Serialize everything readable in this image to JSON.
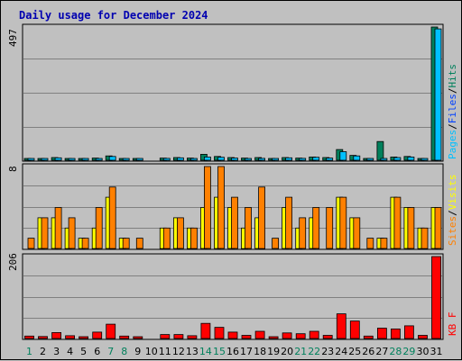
{
  "title": "Daily usage for December 2024",
  "colors": {
    "hits": "#00805c",
    "files": "#0040ff",
    "pages": "#00c0ff",
    "visits": "#ffff00",
    "sites": "#ff8000",
    "kbytes": "#ff0000",
    "weekday_label": "#000000",
    "weekend_label": "#00805c",
    "panel_bg": "#c0c0c0",
    "grid": "#808080"
  },
  "legend": {
    "top": [
      "Pages",
      "/",
      "Files",
      "/",
      "Hits"
    ],
    "middle": [
      "Sites",
      "/",
      "Visits"
    ],
    "bottom": [
      "KB",
      " ",
      "F"
    ]
  },
  "chart_data": {
    "type": "bar",
    "title": "Daily usage for December 2024",
    "categories": [
      "1",
      "2",
      "3",
      "4",
      "5",
      "6",
      "7",
      "8",
      "9",
      "10",
      "11",
      "12",
      "13",
      "14",
      "15",
      "16",
      "17",
      "18",
      "19",
      "20",
      "21",
      "22",
      "23",
      "24",
      "25",
      "26",
      "27",
      "28",
      "29",
      "30",
      "31"
    ],
    "weekend_days": [
      "1",
      "7",
      "8",
      "14",
      "15",
      "21",
      "22",
      "28",
      "29"
    ],
    "panels": [
      {
        "id": "hits_files_pages",
        "ymax_label": "497",
        "ylim": [
          0,
          497
        ],
        "grid": true,
        "legend": "Pages / Files / Hits",
        "series": [
          {
            "name": "Hits",
            "values": [
              6,
              6,
              10,
              6,
              6,
              8,
              16,
              6,
              6,
              0,
              8,
              10,
              8,
              22,
              14,
              10,
              8,
              10,
              6,
              10,
              8,
              12,
              10,
              40,
              18,
              6,
              70,
              12,
              14,
              6,
              497
            ]
          },
          {
            "name": "Files",
            "values": [
              0,
              0,
              0,
              0,
              0,
              0,
              0,
              0,
              0,
              0,
              0,
              0,
              0,
              0,
              0,
              0,
              0,
              0,
              0,
              0,
              0,
              0,
              0,
              0,
              0,
              0,
              0,
              0,
              0,
              0,
              0
            ]
          },
          {
            "name": "Pages",
            "values": [
              5,
              5,
              9,
              5,
              5,
              6,
              14,
              5,
              5,
              0,
              7,
              9,
              6,
              12,
              11,
              8,
              6,
              7,
              5,
              9,
              7,
              11,
              8,
              32,
              16,
              5,
              6,
              10,
              12,
              5,
              490
            ]
          }
        ]
      },
      {
        "id": "visits_sites",
        "ymax_label": "8",
        "ylim": [
          0,
          8
        ],
        "grid": true,
        "legend": "Sites / Visits",
        "series": [
          {
            "name": "Visits",
            "values": [
              0,
              3,
              3,
              2,
              1,
              2,
              5,
              1,
              0,
              0,
              2,
              3,
              2,
              4,
              5,
              4,
              2,
              3,
              0,
              4,
              2,
              3,
              0,
              5,
              3,
              0,
              1,
              5,
              4,
              2,
              4
            ]
          },
          {
            "name": "Sites",
            "values": [
              1,
              3,
              4,
              3,
              1,
              4,
              6,
              1,
              1,
              0,
              2,
              3,
              2,
              8,
              8,
              5,
              4,
              6,
              1,
              5,
              3,
              4,
              4,
              5,
              3,
              1,
              1,
              5,
              4,
              2,
              4
            ]
          }
        ]
      },
      {
        "id": "kbytes",
        "ymax_label": "206",
        "ylim": [
          0,
          206
        ],
        "grid": true,
        "legend": "KB F",
        "series": [
          {
            "name": "KBytes",
            "values": [
              6,
              5,
              15,
              7,
              4,
              16,
              36,
              6,
              4,
              0,
              10,
              10,
              7,
              38,
              28,
              16,
              8,
              18,
              4,
              14,
              12,
              18,
              8,
              62,
              44,
              6,
              26,
              24,
              32,
              8,
              206
            ]
          }
        ]
      }
    ]
  }
}
